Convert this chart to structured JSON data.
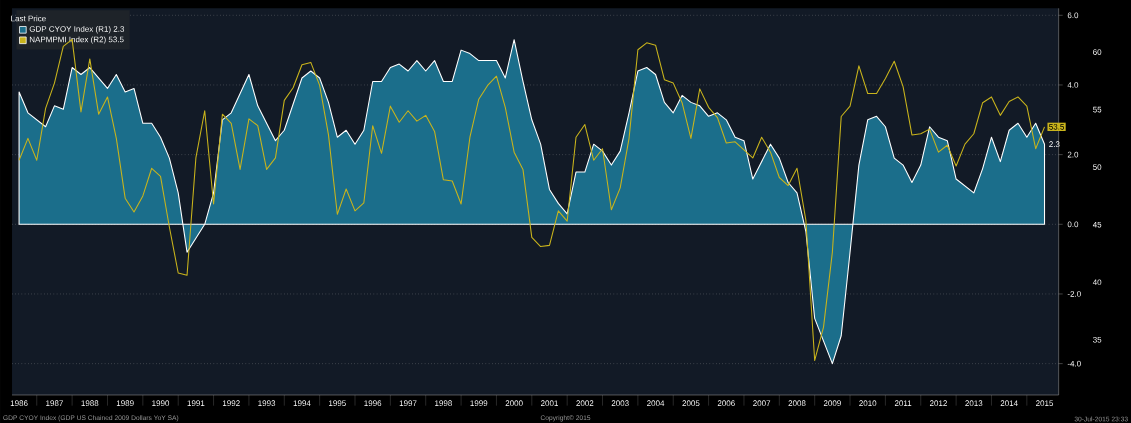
{
  "chart_data": {
    "type": "line",
    "legend_title": "Last Price",
    "legend": "top left",
    "grid": "y",
    "xlim": [
      1986.3,
      2015.9
    ],
    "ylim": [
      -4.9,
      6.2
    ],
    "y2lim": [
      30.2,
      63.8
    ],
    "yticks": [
      {
        "value": -4,
        "label": "-4.0"
      },
      {
        "value": -2,
        "label": "-2.0"
      },
      {
        "value": 0,
        "label": "0.0"
      },
      {
        "value": 2,
        "label": "2.0"
      },
      {
        "value": 4,
        "label": "4.0"
      },
      {
        "value": 6,
        "label": "6.0"
      }
    ],
    "y2ticks": [
      35,
      40,
      45,
      50,
      55,
      60
    ],
    "xticks": [
      {
        "value": 1986.5,
        "label": "1986"
      },
      {
        "value": 1987.5,
        "label": "1987"
      },
      {
        "value": 1988.5,
        "label": "1988"
      },
      {
        "value": 1989.5,
        "label": "1989"
      },
      {
        "value": 1990.5,
        "label": "1990"
      },
      {
        "value": 1991.5,
        "label": "1991"
      },
      {
        "value": 1992.5,
        "label": "1992"
      },
      {
        "value": 1993.5,
        "label": "1993"
      },
      {
        "value": 1994.5,
        "label": "1994"
      },
      {
        "value": 1995.5,
        "label": "1995"
      },
      {
        "value": 1996.5,
        "label": "1996"
      },
      {
        "value": 1997.5,
        "label": "1997"
      },
      {
        "value": 1998.5,
        "label": "1998"
      },
      {
        "value": 1999.5,
        "label": "1999"
      },
      {
        "value": 2000.5,
        "label": "2000"
      },
      {
        "value": 2001.5,
        "label": "2001"
      },
      {
        "value": 2002.5,
        "label": "2002"
      },
      {
        "value": 2003.5,
        "label": "2003"
      },
      {
        "value": 2004.5,
        "label": "2004"
      },
      {
        "value": 2005.5,
        "label": "2005"
      },
      {
        "value": 2006.5,
        "label": "2006"
      },
      {
        "value": 2007.5,
        "label": "2007"
      },
      {
        "value": 2008.5,
        "label": "2008"
      },
      {
        "value": 2009.5,
        "label": "2009"
      },
      {
        "value": 2010.5,
        "label": "2010"
      },
      {
        "value": 2011.5,
        "label": "2011"
      },
      {
        "value": 2012.5,
        "label": "2012"
      },
      {
        "value": 2013.5,
        "label": "2013"
      },
      {
        "value": 2014.5,
        "label": "2014"
      },
      {
        "value": 2015.5,
        "label": "2015"
      },
      {
        "value": 1987,
        "label": null
      },
      {
        "value": 1988,
        "label": null
      },
      {
        "value": 1989,
        "label": null
      },
      {
        "value": 1990,
        "label": null
      },
      {
        "value": 1991,
        "label": null
      },
      {
        "value": 1992,
        "label": null
      },
      {
        "value": 1993,
        "label": null
      },
      {
        "value": 1994,
        "label": null
      },
      {
        "value": 1995,
        "label": null
      },
      {
        "value": 1996,
        "label": null
      },
      {
        "value": 1997,
        "label": null
      },
      {
        "value": 1998,
        "label": null
      },
      {
        "value": 1999,
        "label": null
      },
      {
        "value": 2000,
        "label": null
      },
      {
        "value": 2001,
        "label": null
      },
      {
        "value": 2002,
        "label": null
      },
      {
        "value": 2003,
        "label": null
      },
      {
        "value": 2004,
        "label": null
      },
      {
        "value": 2005,
        "label": null
      },
      {
        "value": 2006,
        "label": null
      },
      {
        "value": 2007,
        "label": null
      },
      {
        "value": 2008,
        "label": null
      },
      {
        "value": 2009,
        "label": null
      },
      {
        "value": 2010,
        "label": null
      },
      {
        "value": 2011,
        "label": null
      },
      {
        "value": 2012,
        "label": null
      },
      {
        "value": 2013,
        "label": null
      },
      {
        "value": 2014,
        "label": null
      },
      {
        "value": 2015,
        "label": null
      }
    ],
    "annotations": [
      "GDP CYOY Index (GDP US Chained 2009 Dollars YoY SA)",
      "Copyright© 2015",
      "30-Jul-2015 23:33"
    ],
    "series": [
      {
        "name": "GDP CYOY Index (R1) 2.3",
        "type": "area",
        "color": "#1b6e8b",
        "x": [
          1986.5,
          1986.75,
          1987.25,
          1987.5,
          1987.75,
          1988,
          1988.25,
          1988.5,
          1988.75,
          1989,
          1989.25,
          1989.5,
          1989.75,
          1990,
          1990.25,
          1990.5,
          1990.75,
          1991,
          1991.25,
          1991.75,
          1992,
          1992.25,
          1992.5,
          1993,
          1993.25,
          1993.75,
          1994,
          1994.5,
          1994.75,
          1995,
          1995.25,
          1995.5,
          1995.75,
          1996,
          1996.25,
          1996.5,
          1996.75,
          1997,
          1997.25,
          1997.5,
          1997.75,
          1998,
          1998.25,
          1998.5,
          1998.75,
          1999,
          1999.25,
          1999.5,
          1999.75,
          2000,
          2000.25,
          2000.5,
          2000.75,
          2001,
          2001.25,
          2001.5,
          2001.75,
          2002,
          2002.25,
          2002.5,
          2002.75,
          2003,
          2003.25,
          2003.5,
          2003.75,
          2004,
          2004.25,
          2004.5,
          2004.75,
          2005,
          2005.25,
          2005.5,
          2005.75,
          2006,
          2006.25,
          2006.5,
          2006.75,
          2007,
          2007.25,
          2007.75,
          2008,
          2008.25,
          2008.5,
          2008.75,
          2009,
          2009.5,
          2009.75,
          2010,
          2010.25,
          2010.5,
          2010.75,
          2011,
          2011.25,
          2011.5,
          2011.75,
          2012,
          2012.25,
          2012.5,
          2012.75,
          2013,
          2013.5,
          2013.75,
          2014,
          2014.25,
          2014.5,
          2014.75,
          2015,
          2015.25,
          2015.5
        ],
        "values": [
          3.8,
          3.2,
          2.8,
          3.4,
          3.3,
          4.5,
          4.3,
          4.5,
          4.2,
          3.9,
          4.3,
          3.8,
          3.9,
          2.9,
          2.9,
          2.5,
          1.9,
          0.9,
          -0.8,
          0.0,
          0.9,
          3.0,
          3.2,
          4.3,
          3.4,
          2.4,
          2.7,
          4.2,
          4.4,
          4.2,
          3.5,
          2.5,
          2.7,
          2.3,
          2.7,
          4.1,
          4.1,
          4.5,
          4.6,
          4.4,
          4.7,
          4.4,
          4.7,
          4.1,
          4.1,
          5.0,
          4.9,
          4.7,
          4.7,
          4.7,
          4.2,
          5.3,
          4.1,
          3.0,
          2.3,
          1.0,
          0.6,
          0.3,
          1.5,
          1.5,
          2.3,
          2.1,
          1.7,
          2.1,
          3.2,
          4.4,
          4.5,
          4.3,
          3.5,
          3.2,
          3.7,
          3.5,
          3.4,
          3.1,
          3.2,
          3.0,
          2.5,
          2.4,
          1.3,
          2.3,
          1.9,
          1.2,
          0.9,
          -0.2,
          -2.7,
          -4.0,
          -3.2,
          -0.8,
          1.7,
          3.0,
          3.1,
          2.8,
          1.9,
          1.7,
          1.2,
          1.7,
          2.8,
          2.5,
          2.4,
          1.3,
          0.9,
          1.6,
          2.5,
          1.8,
          2.7,
          2.9,
          2.5,
          2.9,
          2.3
        ],
        "value_labels": [
          null,
          null,
          null,
          null,
          null,
          null,
          null,
          null,
          null,
          null,
          null,
          null,
          null,
          null,
          null,
          null,
          null,
          null,
          null,
          null,
          null,
          null,
          null,
          null,
          null,
          null,
          null,
          null,
          null,
          null,
          null,
          null,
          null,
          null,
          null,
          null,
          null,
          null,
          null,
          null,
          null,
          null,
          null,
          null,
          null,
          null,
          null,
          null,
          null,
          null,
          null,
          null,
          null,
          null,
          null,
          null,
          null,
          null,
          null,
          null,
          null,
          null,
          null,
          null,
          null,
          null,
          null,
          null,
          null,
          null,
          null,
          null,
          null,
          null,
          null,
          null,
          null,
          null,
          null,
          null,
          null,
          null,
          null,
          null,
          null,
          null,
          null,
          null,
          null,
          null,
          null,
          null,
          null,
          null,
          null,
          null,
          null,
          null,
          null,
          null,
          null,
          null,
          null,
          null,
          null,
          null,
          null,
          null,
          "2.3"
        ]
      },
      {
        "name": "NAPMPMI Index (R2) 53.5",
        "type": "line",
        "axis": "y2",
        "color": "#c9b41c",
        "x": [
          1986.5,
          1986.75,
          1987,
          1987.25,
          1987.5,
          1987.75,
          1988,
          1988.25,
          1988.5,
          1988.75,
          1989,
          1989.25,
          1989.5,
          1989.75,
          1990,
          1990.25,
          1990.5,
          1990.75,
          1991,
          1991.25,
          1991.5,
          1991.75,
          1992,
          1992.25,
          1992.5,
          1992.75,
          1993,
          1993.25,
          1993.5,
          1993.75,
          1994,
          1994.25,
          1994.5,
          1994.75,
          1995,
          1995.25,
          1995.5,
          1995.75,
          1996,
          1996.25,
          1996.5,
          1996.75,
          1997,
          1997.25,
          1997.5,
          1997.75,
          1998,
          1998.25,
          1998.5,
          1998.75,
          1999,
          1999.25,
          1999.5,
          1999.75,
          2000,
          2000.25,
          2000.5,
          2000.75,
          2001,
          2001.25,
          2001.5,
          2001.75,
          2002,
          2002.25,
          2002.5,
          2002.75,
          2003,
          2003.25,
          2003.5,
          2003.75,
          2004,
          2004.25,
          2004.5,
          2004.75,
          2005,
          2005.25,
          2005.5,
          2005.75,
          2006,
          2006.25,
          2006.5,
          2006.75,
          2007,
          2007.25,
          2007.5,
          2007.75,
          2008,
          2008.25,
          2008.5,
          2008.75,
          2009,
          2009.25,
          2009.5,
          2009.75,
          2010,
          2010.25,
          2010.5,
          2010.75,
          2011,
          2011.25,
          2011.5,
          2011.75,
          2012,
          2012.25,
          2012.5,
          2012.75,
          2013,
          2013.25,
          2013.5,
          2013.75,
          2014,
          2014.25,
          2014.5,
          2014.75,
          2015,
          2015.25,
          2015.5
        ],
        "values": [
          50.6,
          52.5,
          50.6,
          55.1,
          57.3,
          60.5,
          61.1,
          54.8,
          59.4,
          54.6,
          56.1,
          52.5,
          47.3,
          46.1,
          47.5,
          49.9,
          49.2,
          44.8,
          40.8,
          40.6,
          50.8,
          54.9,
          46.8,
          54.6,
          53.8,
          49.8,
          54.2,
          53.6,
          49.8,
          50.8,
          55.8,
          56.9,
          58.9,
          59.1,
          57.1,
          52.8,
          45.9,
          48.1,
          46.2,
          46.9,
          53.6,
          51.2,
          55.3,
          53.9,
          54.9,
          54.0,
          54.5,
          53.1,
          48.9,
          48.8,
          46.8,
          52.6,
          55.9,
          57.1,
          57.9,
          55.2,
          51.3,
          49.8,
          43.9,
          43.1,
          43.2,
          46.2,
          45.3,
          52.6,
          53.7,
          50.6,
          51.6,
          46.3,
          48.2,
          52.5,
          60.2,
          60.8,
          60.6,
          57.6,
          57.3,
          55.6,
          52.5,
          56.8,
          55.2,
          54.3,
          52.1,
          52.2,
          51.5,
          50.8,
          52.6,
          51.3,
          49.1,
          48.4,
          49.9,
          45.4,
          33.2,
          36.1,
          42.6,
          54.4,
          55.3,
          58.8,
          56.4,
          56.4,
          57.7,
          59.2,
          57.0,
          52.8,
          52.9,
          53.3,
          51.3,
          51.9,
          50.1,
          52.0,
          52.9,
          55.6,
          56.1,
          54.5,
          55.7,
          56.1,
          55.3,
          51.6,
          53.5
        ],
        "value_labels": [
          null,
          null,
          null,
          null,
          null,
          null,
          null,
          null,
          null,
          null,
          null,
          null,
          null,
          null,
          null,
          null,
          null,
          null,
          null,
          null,
          null,
          null,
          null,
          null,
          null,
          null,
          null,
          null,
          null,
          null,
          null,
          null,
          null,
          null,
          null,
          null,
          null,
          null,
          null,
          null,
          null,
          null,
          null,
          null,
          null,
          null,
          null,
          null,
          null,
          null,
          null,
          null,
          null,
          null,
          null,
          null,
          null,
          null,
          null,
          null,
          null,
          null,
          null,
          null,
          null,
          null,
          null,
          null,
          null,
          null,
          null,
          null,
          null,
          null,
          null,
          null,
          null,
          null,
          null,
          null,
          null,
          null,
          null,
          null,
          null,
          null,
          null,
          null,
          null,
          null,
          null,
          null,
          null,
          null,
          null,
          null,
          null,
          null,
          null,
          null,
          null,
          null,
          null,
          null,
          null,
          null,
          null,
          null,
          null,
          null,
          null,
          null,
          null,
          null,
          null,
          null,
          "53.5"
        ]
      }
    ]
  }
}
